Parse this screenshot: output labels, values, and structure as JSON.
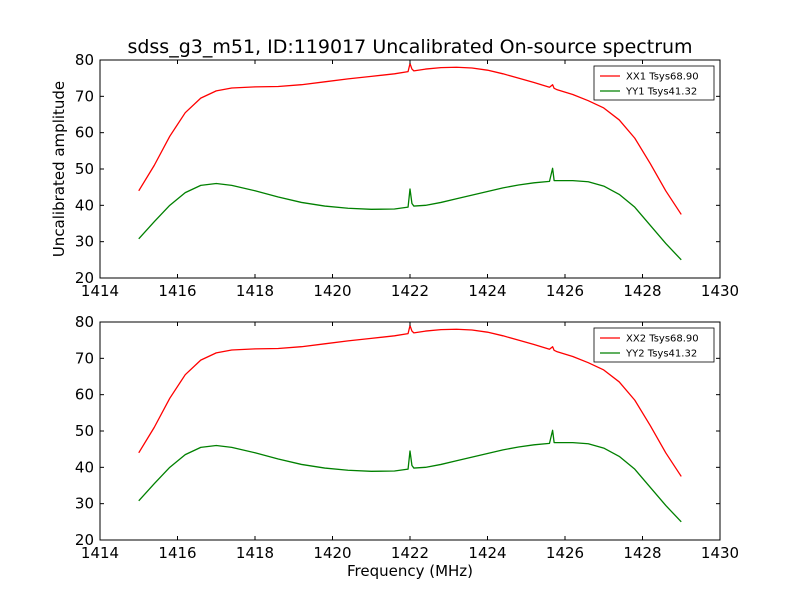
{
  "figure_title": "sdss_g3_m51, ID:119017 Uncalibrated On-source spectrum",
  "chart_data": [
    {
      "type": "line",
      "title": "sdss_g3_m51, ID:119017 Uncalibrated On-source spectrum",
      "xlabel": "",
      "ylabel": "Uncalibrated amplitude",
      "xlim": [
        1414,
        1430
      ],
      "ylim": [
        20,
        80
      ],
      "xticks": [
        1414,
        1416,
        1418,
        1420,
        1422,
        1424,
        1426,
        1428,
        1430
      ],
      "yticks": [
        20,
        30,
        40,
        50,
        60,
        70,
        80
      ],
      "grid": false,
      "legend_position": "top-right",
      "series": [
        {
          "name": "XX1 Tsys68.90",
          "color": "#ff0000",
          "x": [
            1415.0,
            1415.4,
            1415.8,
            1416.2,
            1416.6,
            1417.0,
            1417.4,
            1418.0,
            1418.6,
            1419.2,
            1419.8,
            1420.4,
            1421.0,
            1421.6,
            1421.95,
            1422.0,
            1422.05,
            1422.1,
            1422.4,
            1422.8,
            1423.2,
            1423.6,
            1424.0,
            1424.4,
            1424.8,
            1425.2,
            1425.6,
            1425.68,
            1425.72,
            1425.8,
            1426.2,
            1426.6,
            1427.0,
            1427.4,
            1427.8,
            1428.2,
            1428.6,
            1429.0
          ],
          "values": [
            44.0,
            51.0,
            59.0,
            65.5,
            69.5,
            71.5,
            72.3,
            72.6,
            72.7,
            73.2,
            74.0,
            74.8,
            75.5,
            76.2,
            76.8,
            79.0,
            77.5,
            77.0,
            77.5,
            77.9,
            78.0,
            77.8,
            77.2,
            76.2,
            75.0,
            73.8,
            72.5,
            73.2,
            72.2,
            71.8,
            70.5,
            68.8,
            66.8,
            63.5,
            58.5,
            51.5,
            44.0,
            37.5
          ]
        },
        {
          "name": "YY1 Tsys41.32",
          "color": "#008000",
          "x": [
            1415.0,
            1415.4,
            1415.8,
            1416.2,
            1416.6,
            1417.0,
            1417.4,
            1418.0,
            1418.6,
            1419.2,
            1419.8,
            1420.4,
            1421.0,
            1421.6,
            1421.95,
            1422.0,
            1422.05,
            1422.1,
            1422.4,
            1422.8,
            1423.2,
            1423.6,
            1424.0,
            1424.4,
            1424.8,
            1425.2,
            1425.6,
            1425.68,
            1425.72,
            1425.8,
            1426.2,
            1426.6,
            1427.0,
            1427.4,
            1427.8,
            1428.2,
            1428.6,
            1429.0
          ],
          "values": [
            30.8,
            35.5,
            40.0,
            43.5,
            45.5,
            46.0,
            45.5,
            44.0,
            42.3,
            40.8,
            39.8,
            39.2,
            38.9,
            39.0,
            39.5,
            44.5,
            40.5,
            39.8,
            40.0,
            40.8,
            41.8,
            42.8,
            43.8,
            44.8,
            45.6,
            46.2,
            46.6,
            50.2,
            46.8,
            46.8,
            46.8,
            46.5,
            45.3,
            43.0,
            39.5,
            34.5,
            29.5,
            25.0
          ]
        }
      ]
    },
    {
      "type": "line",
      "title": "",
      "xlabel": "Frequency (MHz)",
      "ylabel": "",
      "xlim": [
        1414,
        1430
      ],
      "ylim": [
        20,
        80
      ],
      "xticks": [
        1414,
        1416,
        1418,
        1420,
        1422,
        1424,
        1426,
        1428,
        1430
      ],
      "yticks": [
        20,
        30,
        40,
        50,
        60,
        70,
        80
      ],
      "grid": false,
      "legend_position": "top-right",
      "series": [
        {
          "name": "XX2 Tsys68.90",
          "color": "#ff0000",
          "x": [
            1415.0,
            1415.4,
            1415.8,
            1416.2,
            1416.6,
            1417.0,
            1417.4,
            1418.0,
            1418.6,
            1419.2,
            1419.8,
            1420.4,
            1421.0,
            1421.6,
            1421.95,
            1422.0,
            1422.05,
            1422.1,
            1422.4,
            1422.8,
            1423.2,
            1423.6,
            1424.0,
            1424.4,
            1424.8,
            1425.2,
            1425.6,
            1425.68,
            1425.72,
            1425.8,
            1426.2,
            1426.6,
            1427.0,
            1427.4,
            1427.8,
            1428.2,
            1428.6,
            1429.0
          ],
          "values": [
            44.0,
            51.0,
            59.0,
            65.5,
            69.5,
            71.5,
            72.3,
            72.6,
            72.7,
            73.2,
            74.0,
            74.8,
            75.5,
            76.2,
            76.8,
            79.0,
            77.5,
            77.0,
            77.5,
            77.9,
            78.0,
            77.8,
            77.2,
            76.2,
            75.0,
            73.8,
            72.5,
            73.2,
            72.2,
            71.8,
            70.5,
            68.8,
            66.8,
            63.5,
            58.5,
            51.5,
            44.0,
            37.5
          ]
        },
        {
          "name": "YY2 Tsys41.32",
          "color": "#008000",
          "x": [
            1415.0,
            1415.4,
            1415.8,
            1416.2,
            1416.6,
            1417.0,
            1417.4,
            1418.0,
            1418.6,
            1419.2,
            1419.8,
            1420.4,
            1421.0,
            1421.6,
            1421.95,
            1422.0,
            1422.05,
            1422.1,
            1422.4,
            1422.8,
            1423.2,
            1423.6,
            1424.0,
            1424.4,
            1424.8,
            1425.2,
            1425.6,
            1425.68,
            1425.72,
            1425.8,
            1426.2,
            1426.6,
            1427.0,
            1427.4,
            1427.8,
            1428.2,
            1428.6,
            1429.0
          ],
          "values": [
            30.8,
            35.5,
            40.0,
            43.5,
            45.5,
            46.0,
            45.5,
            44.0,
            42.3,
            40.8,
            39.8,
            39.2,
            38.9,
            39.0,
            39.5,
            44.5,
            40.5,
            39.8,
            40.0,
            40.8,
            41.8,
            42.8,
            43.8,
            44.8,
            45.6,
            46.2,
            46.6,
            50.2,
            46.8,
            46.8,
            46.8,
            46.5,
            45.3,
            43.0,
            39.5,
            34.5,
            29.5,
            25.0
          ]
        }
      ]
    }
  ]
}
